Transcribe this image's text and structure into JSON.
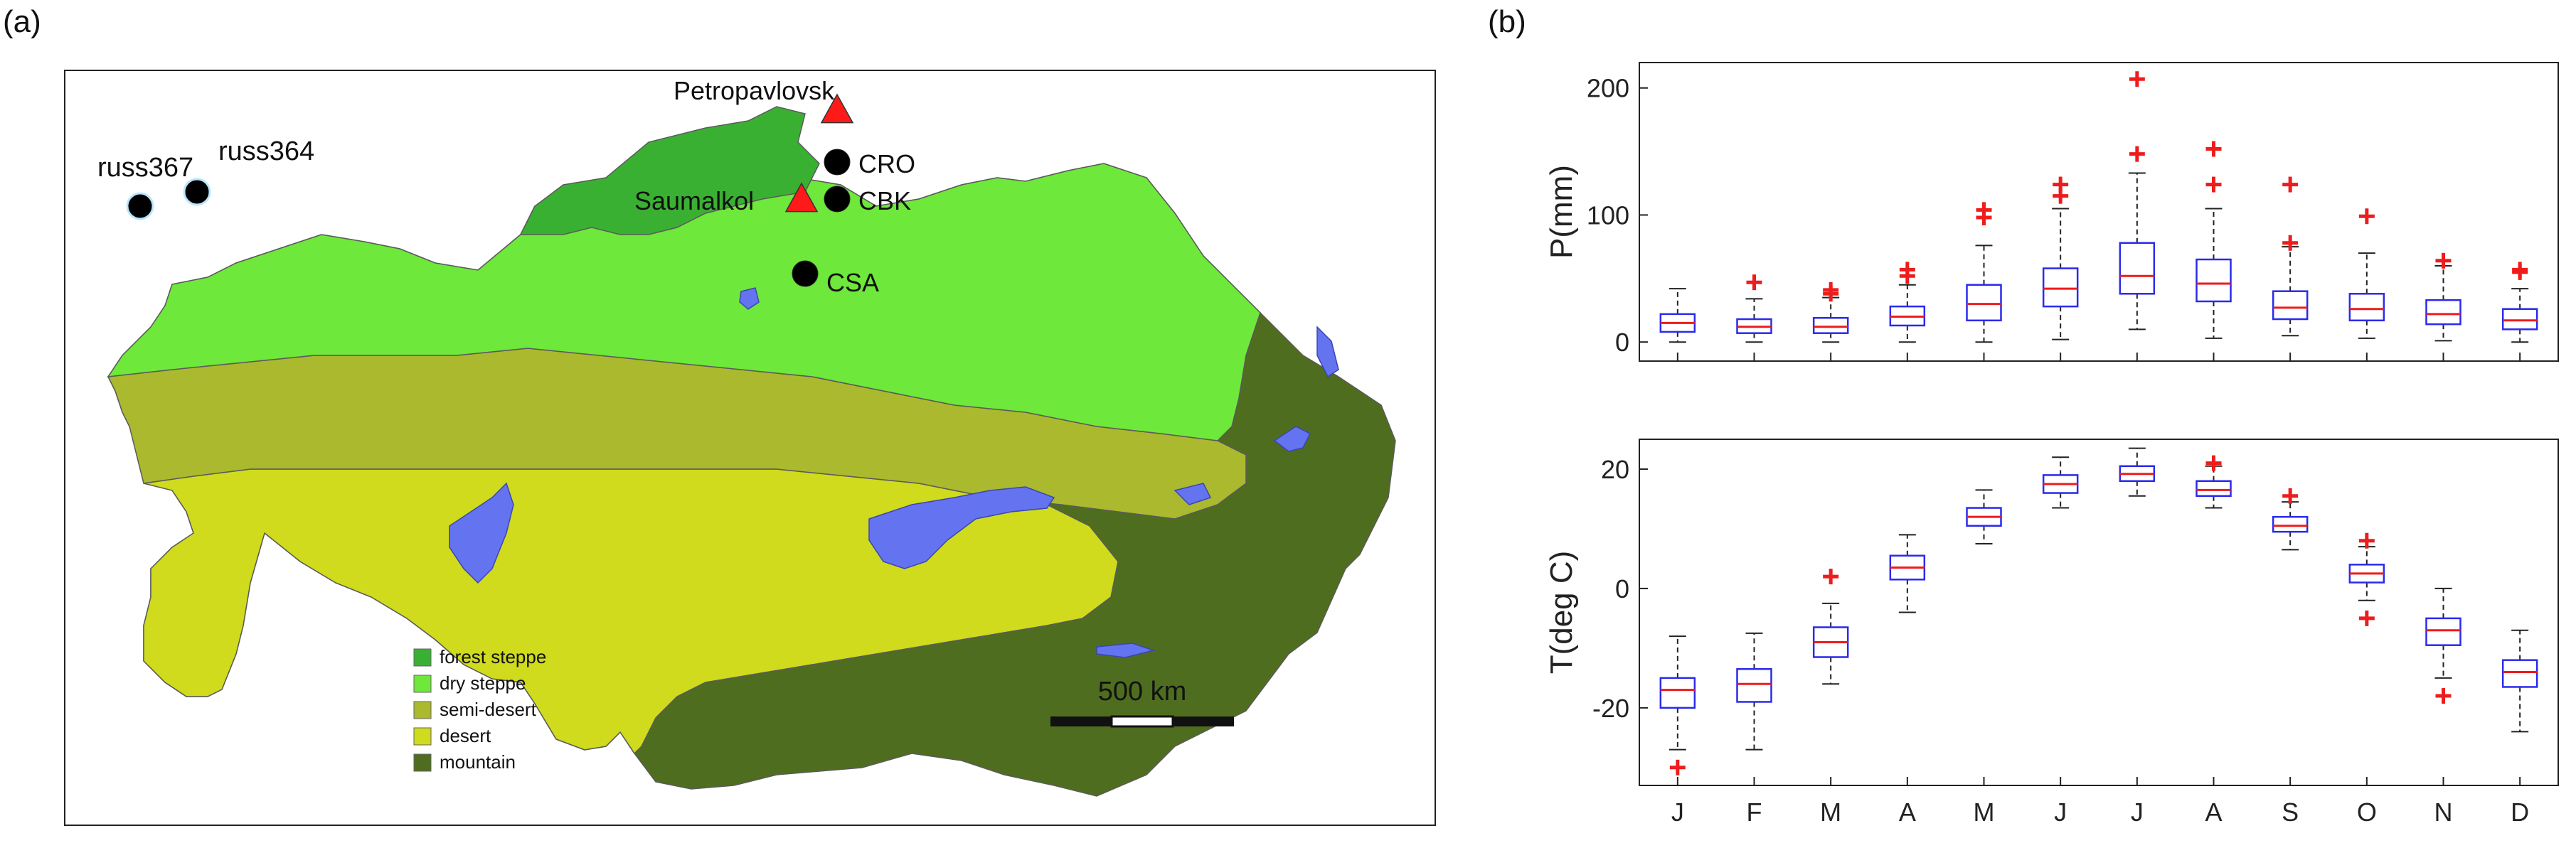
{
  "panels": {
    "map_label": "(a)",
    "charts_label": "(b)"
  },
  "map": {
    "stations": [
      {
        "name": "Petropavlovsk",
        "marker": "triangle"
      },
      {
        "name": "CRO",
        "marker": "circle"
      },
      {
        "name": "CBK",
        "marker": "circle"
      },
      {
        "name": "Saumalkol",
        "marker": "triangle"
      },
      {
        "name": "CSA",
        "marker": "circle"
      },
      {
        "name": "russ367",
        "marker": "circle"
      },
      {
        "name": "russ364",
        "marker": "circle"
      }
    ],
    "legend": [
      {
        "label": "forest steppe",
        "color": "#3ab033"
      },
      {
        "label": "dry steppe",
        "color": "#6ee83a"
      },
      {
        "label": "semi-desert",
        "color": "#aab92e"
      },
      {
        "label": "desert",
        "color": "#cfdb1c"
      },
      {
        "label": "mountain",
        "color": "#4f6d1f"
      }
    ],
    "water_color": "#6473f0",
    "scale_bar": "500 km"
  },
  "chart_data": [
    {
      "type": "box",
      "ylabel": "P(mm)",
      "ylim": [
        -15,
        220
      ],
      "yticks": [
        0,
        100,
        200
      ],
      "categories": [
        "J",
        "F",
        "M",
        "A",
        "M",
        "J",
        "J",
        "A",
        "S",
        "O",
        "N",
        "D"
      ],
      "boxes": [
        {
          "wlo": 0,
          "q1": 8,
          "med": 15,
          "q3": 22,
          "whi": 42,
          "outliers": []
        },
        {
          "wlo": 0,
          "q1": 7,
          "med": 12,
          "q3": 18,
          "whi": 34,
          "outliers": [
            47
          ]
        },
        {
          "wlo": 0,
          "q1": 7,
          "med": 12,
          "q3": 19,
          "whi": 35,
          "outliers": [
            38,
            41
          ]
        },
        {
          "wlo": 0,
          "q1": 13,
          "med": 20,
          "q3": 28,
          "whi": 45,
          "outliers": [
            52,
            57
          ]
        },
        {
          "wlo": 0,
          "q1": 17,
          "med": 30,
          "q3": 45,
          "whi": 76,
          "outliers": [
            98,
            104
          ]
        },
        {
          "wlo": 2,
          "q1": 28,
          "med": 42,
          "q3": 58,
          "whi": 105,
          "outliers": [
            115,
            124
          ]
        },
        {
          "wlo": 10,
          "q1": 38,
          "med": 52,
          "q3": 78,
          "whi": 133,
          "outliers": [
            148,
            207
          ]
        },
        {
          "wlo": 3,
          "q1": 32,
          "med": 46,
          "q3": 65,
          "whi": 105,
          "outliers": [
            124,
            152
          ]
        },
        {
          "wlo": 5,
          "q1": 18,
          "med": 27,
          "q3": 40,
          "whi": 75,
          "outliers": [
            78,
            124
          ]
        },
        {
          "wlo": 3,
          "q1": 17,
          "med": 26,
          "q3": 38,
          "whi": 70,
          "outliers": [
            99
          ]
        },
        {
          "wlo": 1,
          "q1": 14,
          "med": 22,
          "q3": 33,
          "whi": 60,
          "outliers": [
            64
          ]
        },
        {
          "wlo": 0,
          "q1": 10,
          "med": 17,
          "q3": 26,
          "whi": 42,
          "outliers": [
            55,
            57
          ]
        }
      ]
    },
    {
      "type": "box",
      "ylabel": "T(deg C)",
      "ylim": [
        -33,
        25
      ],
      "yticks": [
        -20,
        0,
        20
      ],
      "categories": [
        "J",
        "F",
        "M",
        "A",
        "M",
        "J",
        "J",
        "A",
        "S",
        "O",
        "N",
        "D"
      ],
      "boxes": [
        {
          "wlo": -27,
          "q1": -20,
          "med": -17,
          "q3": -15,
          "whi": -8,
          "outliers": [
            -30
          ]
        },
        {
          "wlo": -27,
          "q1": -19,
          "med": -16,
          "q3": -13.5,
          "whi": -7.5,
          "outliers": []
        },
        {
          "wlo": -16,
          "q1": -11.5,
          "med": -9,
          "q3": -6.5,
          "whi": -2.5,
          "outliers": [
            2
          ]
        },
        {
          "wlo": -4,
          "q1": 1.5,
          "med": 3.5,
          "q3": 5.5,
          "whi": 9,
          "outliers": []
        },
        {
          "wlo": 7.5,
          "q1": 10.5,
          "med": 12,
          "q3": 13.5,
          "whi": 16.5,
          "outliers": []
        },
        {
          "wlo": 13.5,
          "q1": 16,
          "med": 17.5,
          "q3": 19,
          "whi": 22,
          "outliers": []
        },
        {
          "wlo": 15.5,
          "q1": 18,
          "med": 19.2,
          "q3": 20.5,
          "whi": 23.5,
          "outliers": []
        },
        {
          "wlo": 13.5,
          "q1": 15.5,
          "med": 16.5,
          "q3": 18,
          "whi": 20.5,
          "outliers": [
            21
          ]
        },
        {
          "wlo": 6.5,
          "q1": 9.5,
          "med": 10.5,
          "q3": 12,
          "whi": 14.5,
          "outliers": [
            15.5
          ]
        },
        {
          "wlo": -2,
          "q1": 1,
          "med": 2.5,
          "q3": 4,
          "whi": 7,
          "outliers": [
            8,
            -5
          ]
        },
        {
          "wlo": -15,
          "q1": -9.5,
          "med": -7,
          "q3": -5,
          "whi": 0,
          "outliers": [
            -18
          ]
        },
        {
          "wlo": -24,
          "q1": -16.5,
          "med": -14,
          "q3": -12,
          "whi": -7,
          "outliers": []
        }
      ]
    }
  ]
}
